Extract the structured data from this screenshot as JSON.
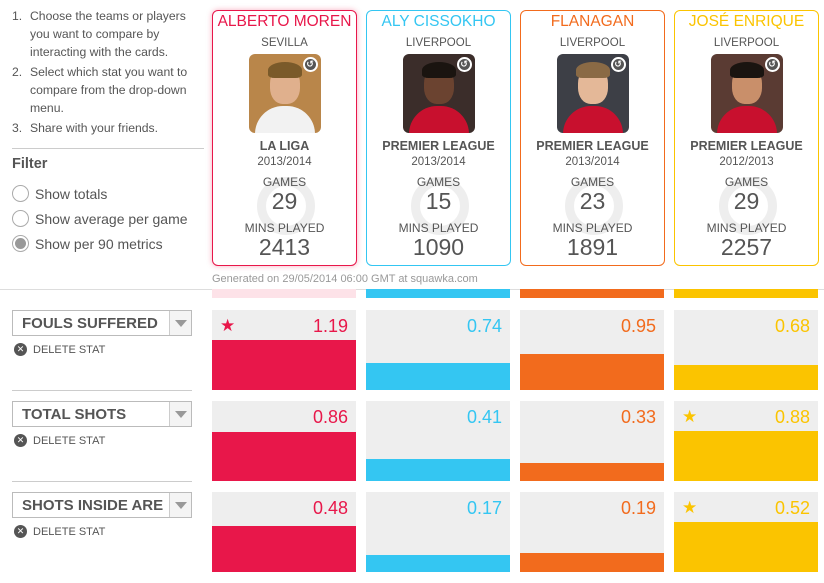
{
  "instructions": [
    {
      "num": "1.",
      "text": "Choose the teams or players you want to compare by interacting with the cards."
    },
    {
      "num": "2.",
      "text": "Select which stat you want to compare from the drop-down menu."
    },
    {
      "num": "3.",
      "text": "Share with your friends."
    }
  ],
  "filter": {
    "title": "Filter",
    "options": [
      {
        "label": "Show totals",
        "checked": false
      },
      {
        "label": "Show average per game",
        "checked": false
      },
      {
        "label": "Show per 90 metrics",
        "checked": true
      }
    ]
  },
  "players": [
    {
      "name": "ALBERTO MOREN",
      "club": "SEVILLA",
      "league": "LA LIGA",
      "season": "2013/2014",
      "games_label": "GAMES",
      "games": "29",
      "mins_label": "MINS PLAYED",
      "mins": "2413",
      "color": "#e8174a",
      "badge": "squawka-icon"
    },
    {
      "name": "ALY CISSOKHO",
      "club": "LIVERPOOL",
      "league": "PREMIER LEAGUE",
      "season": "2013/2014",
      "games_label": "GAMES",
      "games": "15",
      "mins_label": "MINS PLAYED",
      "mins": "1090",
      "color": "#34c6f2",
      "badge": "squawka-icon"
    },
    {
      "name": "FLANAGAN",
      "club": "LIVERPOOL",
      "league": "PREMIER LEAGUE",
      "season": "2013/2014",
      "games_label": "GAMES",
      "games": "23",
      "mins_label": "MINS PLAYED",
      "mins": "1891",
      "color": "#f26b1d",
      "badge": "squawka-icon"
    },
    {
      "name": "JOSÉ ENRIQUE",
      "club": "LIVERPOOL",
      "league": "PREMIER LEAGUE",
      "season": "2012/2013",
      "games_label": "GAMES",
      "games": "29",
      "mins_label": "MINS PLAYED",
      "mins": "2257",
      "color": "#fbc400",
      "badge": "squawka-icon"
    }
  ],
  "generated_text": "Generated on 29/05/2014 06:00 GMT at squawka.com",
  "delete_label": "DELETE STAT",
  "stats": [
    {
      "name": "FOULS SUFFERED",
      "values": [
        "1.19",
        "0.74",
        "0.95",
        "0.68"
      ],
      "fill": [
        1.0,
        0.54,
        0.71,
        0.49
      ],
      "star_index": 0
    },
    {
      "name": "TOTAL SHOTS",
      "values": [
        "0.86",
        "0.41",
        "0.33",
        "0.88"
      ],
      "fill": [
        0.98,
        0.44,
        0.36,
        1.0
      ],
      "star_index": 3
    },
    {
      "name": "SHOTS INSIDE ARE",
      "values": [
        "0.48",
        "0.17",
        "0.19",
        "0.52"
      ],
      "fill": [
        0.92,
        0.33,
        0.37,
        1.0
      ],
      "star_index": 3
    }
  ],
  "top_bar_colors": [
    "#fde2e8",
    "#34c6f2",
    "#f26b1d",
    "#fbc400"
  ],
  "icons": {
    "star": "star-icon",
    "delete": "close-circle-icon",
    "caret": "chevron-down-icon"
  }
}
